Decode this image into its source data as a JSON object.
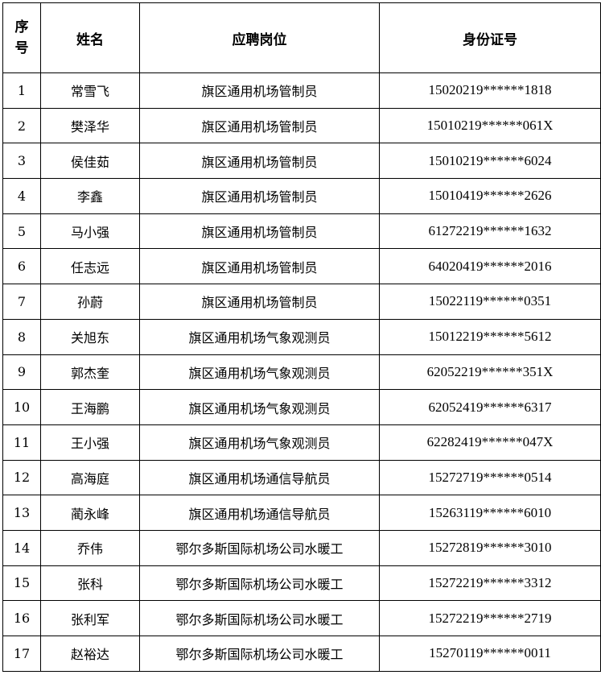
{
  "headers": {
    "seq_line1": "序",
    "seq_line2": "号",
    "name": "姓名",
    "position": "应聘岗位",
    "id": "身份证号"
  },
  "rows": [
    {
      "seq": "1",
      "name": "常雪飞",
      "position": "旗区通用机场管制员",
      "id": "15020219******1818"
    },
    {
      "seq": "2",
      "name": "樊泽华",
      "position": "旗区通用机场管制员",
      "id": "15010219******061X"
    },
    {
      "seq": "3",
      "name": "侯佳茹",
      "position": "旗区通用机场管制员",
      "id": "15010219******6024"
    },
    {
      "seq": "4",
      "name": "李鑫",
      "position": "旗区通用机场管制员",
      "id": "15010419******2626"
    },
    {
      "seq": "5",
      "name": "马小强",
      "position": "旗区通用机场管制员",
      "id": "61272219******1632"
    },
    {
      "seq": "6",
      "name": "任志远",
      "position": "旗区通用机场管制员",
      "id": "64020419******2016"
    },
    {
      "seq": "7",
      "name": "孙蔚",
      "position": "旗区通用机场管制员",
      "id": "15022119******0351"
    },
    {
      "seq": "8",
      "name": "关旭东",
      "position": "旗区通用机场气象观测员",
      "id": "15012219******5612"
    },
    {
      "seq": "9",
      "name": "郭杰奎",
      "position": "旗区通用机场气象观测员",
      "id": "62052219******351X"
    },
    {
      "seq": "10",
      "name": "王海鹏",
      "position": "旗区通用机场气象观测员",
      "id": "62052419******6317"
    },
    {
      "seq": "11",
      "name": "王小强",
      "position": "旗区通用机场气象观测员",
      "id": "62282419******047X"
    },
    {
      "seq": "12",
      "name": "高海庭",
      "position": "旗区通用机场通信导航员",
      "id": "15272719******0514"
    },
    {
      "seq": "13",
      "name": "蔺永峰",
      "position": "旗区通用机场通信导航员",
      "id": "15263119******6010"
    },
    {
      "seq": "14",
      "name": "乔伟",
      "position": "鄂尔多斯国际机场公司水暖工",
      "id": "15272819******3010"
    },
    {
      "seq": "15",
      "name": "张科",
      "position": "鄂尔多斯国际机场公司水暖工",
      "id": "15272219******3312"
    },
    {
      "seq": "16",
      "name": "张利军",
      "position": "鄂尔多斯国际机场公司水暖工",
      "id": "15272219******2719"
    },
    {
      "seq": "17",
      "name": "赵裕达",
      "position": "鄂尔多斯国际机场公司水暖工",
      "id": "15270119******0011"
    }
  ]
}
